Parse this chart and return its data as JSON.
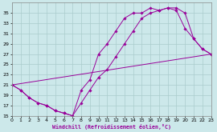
{
  "xlabel": "Windchill (Refroidissement éolien,°C)",
  "bg_color": "#cce8ea",
  "line_color": "#990099",
  "grid_color": "#aacccc",
  "xmin": 0,
  "xmax": 23,
  "ymin": 15,
  "ymax": 36,
  "yticks": [
    15,
    17,
    19,
    21,
    23,
    25,
    27,
    29,
    31,
    33,
    35
  ],
  "xticks": [
    0,
    1,
    2,
    3,
    4,
    5,
    6,
    7,
    8,
    9,
    10,
    11,
    12,
    13,
    14,
    15,
    16,
    17,
    18,
    19,
    20,
    21,
    22,
    23
  ],
  "line1_x": [
    0,
    1,
    2,
    3,
    4,
    5,
    6,
    7,
    8,
    9,
    10,
    11,
    12,
    13,
    14,
    15,
    16,
    17,
    18,
    19,
    20,
    21,
    22,
    23
  ],
  "line1_y": [
    21,
    20,
    18.5,
    17.5,
    17,
    16,
    15.5,
    15,
    17.5,
    20,
    22.5,
    24,
    26.5,
    29,
    31.5,
    34,
    35,
    35.5,
    36,
    35.5,
    32,
    30,
    28,
    27
  ],
  "line2_x": [
    0,
    1,
    2,
    3,
    4,
    5,
    6,
    7,
    8,
    9,
    10,
    11,
    12,
    13,
    14,
    15,
    16,
    17,
    18,
    19,
    20,
    21,
    22,
    23
  ],
  "line2_y": [
    21,
    20,
    18.5,
    17.5,
    17,
    16,
    15.5,
    15,
    20,
    22,
    27,
    29,
    31.5,
    34,
    35,
    35,
    36,
    35.5,
    36,
    36,
    35,
    30,
    28,
    27
  ],
  "line3_x": [
    0,
    23
  ],
  "line3_y": [
    21,
    27
  ]
}
